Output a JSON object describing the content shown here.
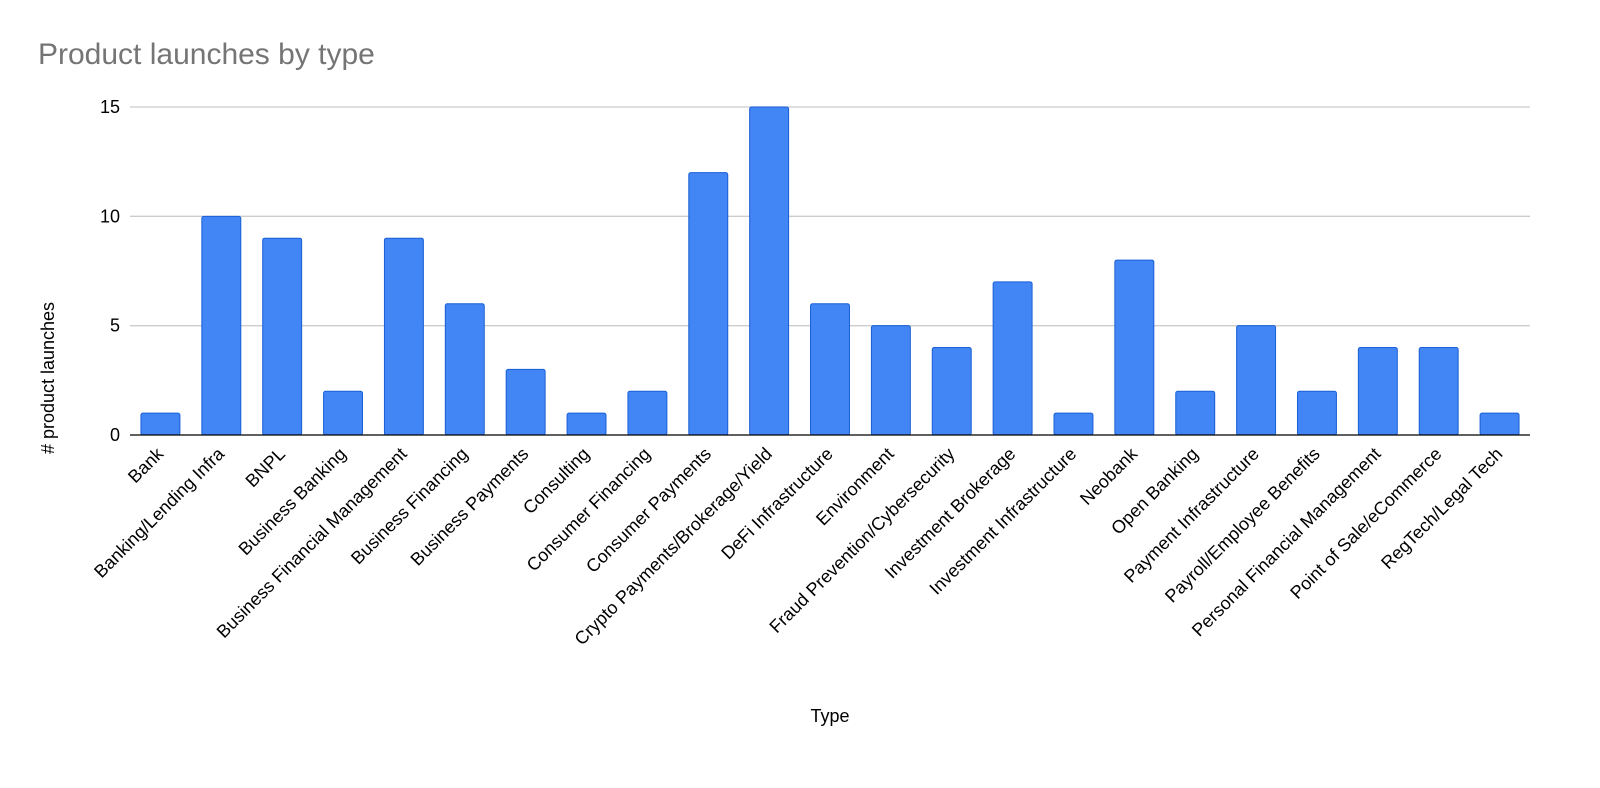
{
  "chart_data": {
    "type": "bar",
    "title": "Product launches by type",
    "xlabel": "Type",
    "ylabel": "# product launches",
    "ylim": [
      0,
      15
    ],
    "yticks": [
      0,
      5,
      10,
      15
    ],
    "grid": true,
    "legend": "none",
    "bar_color": "#4285f4",
    "bar_edge_color": "#1a5fd6",
    "categories": [
      "Bank",
      "Banking/Lending Infra",
      "BNPL",
      "Business Banking",
      "Business Financial Management",
      "Business Financing",
      "Business Payments",
      "Consulting",
      "Consumer Financing",
      "Consumer Payments",
      "Crypto Payments/Brokerage/Yield",
      "DeFi Infrastructure",
      "Environment",
      "Fraud Prevention/Cybersecurity",
      "Investment Brokerage",
      "Investment Infrastructure",
      "Neobank",
      "Open Banking",
      "Payment Infrastructure",
      "Payroll/Employee Benefits",
      "Personal Financial Management",
      "Point of Sale/eCommerce",
      "RegTech/Legal Tech"
    ],
    "values": [
      1,
      10,
      9,
      2,
      9,
      6,
      3,
      1,
      2,
      12,
      15,
      6,
      5,
      4,
      7,
      1,
      8,
      2,
      5,
      2,
      4,
      4,
      1
    ]
  }
}
